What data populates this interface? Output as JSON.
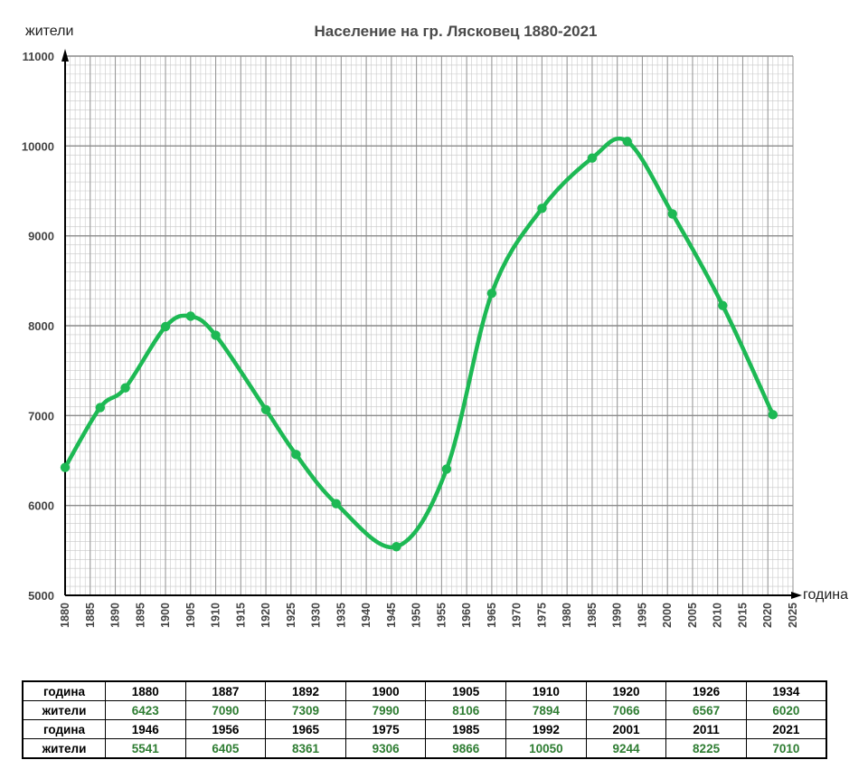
{
  "chart_data": {
    "type": "line",
    "title": "Население на гр. Лясковец 1880-2021",
    "ylabel": "жители",
    "xlabel": "година",
    "xlim": [
      1880,
      2025
    ],
    "ylim": [
      5000,
      11000
    ],
    "x_ticks": [
      1880,
      1885,
      1890,
      1895,
      1900,
      1905,
      1910,
      1915,
      1920,
      1925,
      1930,
      1935,
      1940,
      1945,
      1950,
      1955,
      1960,
      1965,
      1970,
      1975,
      1980,
      1985,
      1990,
      1995,
      2000,
      2005,
      2010,
      2015,
      2020,
      2025
    ],
    "y_ticks": [
      5000,
      6000,
      7000,
      8000,
      9000,
      10000,
      11000
    ],
    "grid": true,
    "line_color": "#1db954",
    "x": [
      1880,
      1887,
      1892,
      1900,
      1905,
      1910,
      1920,
      1926,
      1934,
      1946,
      1956,
      1965,
      1975,
      1985,
      1992,
      2001,
      2011,
      2021
    ],
    "y": [
      6423,
      7090,
      7309,
      7990,
      8106,
      7894,
      7066,
      6567,
      6020,
      5541,
      6405,
      8361,
      9306,
      9866,
      10050,
      9244,
      8225,
      7010
    ]
  },
  "table": {
    "year_header": "година",
    "pop_header": "жители",
    "rows": [
      {
        "years": [
          "1880",
          "1887",
          "1892",
          "1900",
          "1905",
          "1910",
          "1920",
          "1926",
          "1934"
        ],
        "pops": [
          "6423",
          "7090",
          "7309",
          "7990",
          "8106",
          "7894",
          "7066",
          "6567",
          "6020"
        ]
      },
      {
        "years": [
          "1946",
          "1956",
          "1965",
          "1975",
          "1985",
          "1992",
          "2001",
          "2011",
          "2021"
        ],
        "pops": [
          "5541",
          "6405",
          "8361",
          "9306",
          "9866",
          "10050",
          "9244",
          "8225",
          "7010"
        ]
      }
    ]
  }
}
